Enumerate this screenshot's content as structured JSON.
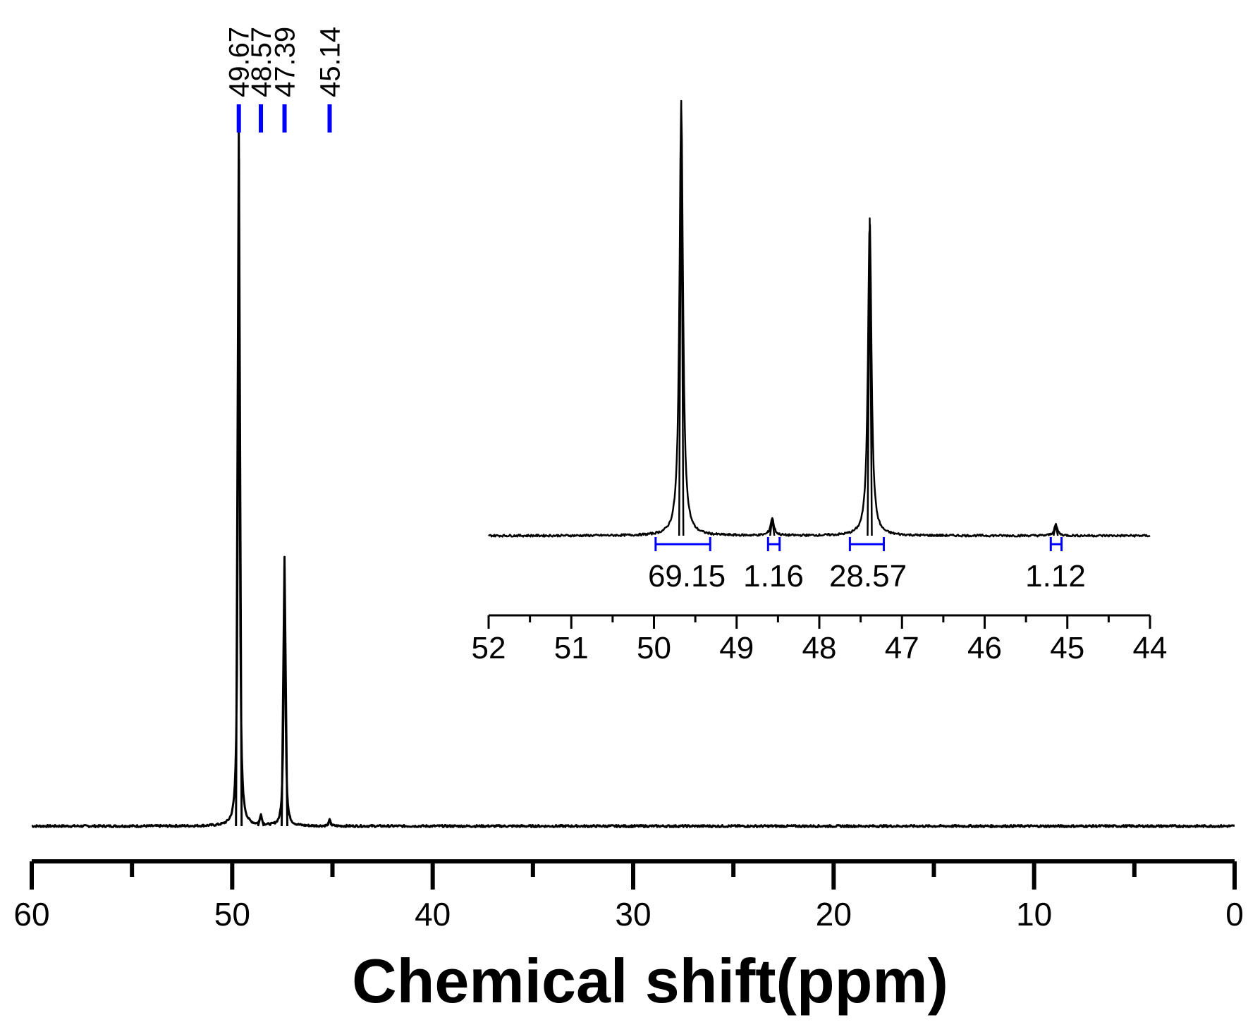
{
  "chart_data": [
    {
      "type": "line",
      "xlabel": "Chemical shift(ppm)",
      "ylabel": "",
      "xlim": [
        60,
        0
      ],
      "x_reversed": true,
      "x_ticks": [
        "60",
        "50",
        "40",
        "30",
        "20",
        "10",
        "0"
      ],
      "grid": false,
      "series": [
        {
          "peaks": [
            {
              "ppm": 49.67,
              "relative_height": 1.0
            },
            {
              "ppm": 48.57,
              "relative_height": 0.016
            },
            {
              "ppm": 47.39,
              "relative_height": 0.385
            },
            {
              "ppm": 45.14,
              "relative_height": 0.009
            }
          ]
        }
      ],
      "peak_labels": [
        "49.67",
        "48.57",
        "47.39",
        "45.14"
      ],
      "peak_marker_color": "#0000ff"
    },
    {
      "type": "line",
      "inset": true,
      "xlim": [
        52,
        44
      ],
      "x_reversed": true,
      "x_ticks": [
        "52",
        "51",
        "50",
        "49",
        "48",
        "47",
        "46",
        "45",
        "44"
      ],
      "series": [
        {
          "peaks": [
            {
              "ppm": 49.67,
              "relative_height": 1.0
            },
            {
              "ppm": 48.57,
              "relative_height": 0.04
            },
            {
              "ppm": 47.39,
              "relative_height": 0.73
            },
            {
              "ppm": 45.14,
              "relative_height": 0.025
            }
          ]
        }
      ],
      "integrals": [
        {
          "from": 49.98,
          "to": 49.32,
          "value": "69.15"
        },
        {
          "from": 48.62,
          "to": 48.48,
          "value": "1.16"
        },
        {
          "from": 47.63,
          "to": 47.22,
          "value": "28.57"
        },
        {
          "from": 45.2,
          "to": 45.07,
          "value": "1.12"
        }
      ],
      "integral_color": "#0000ff"
    }
  ]
}
